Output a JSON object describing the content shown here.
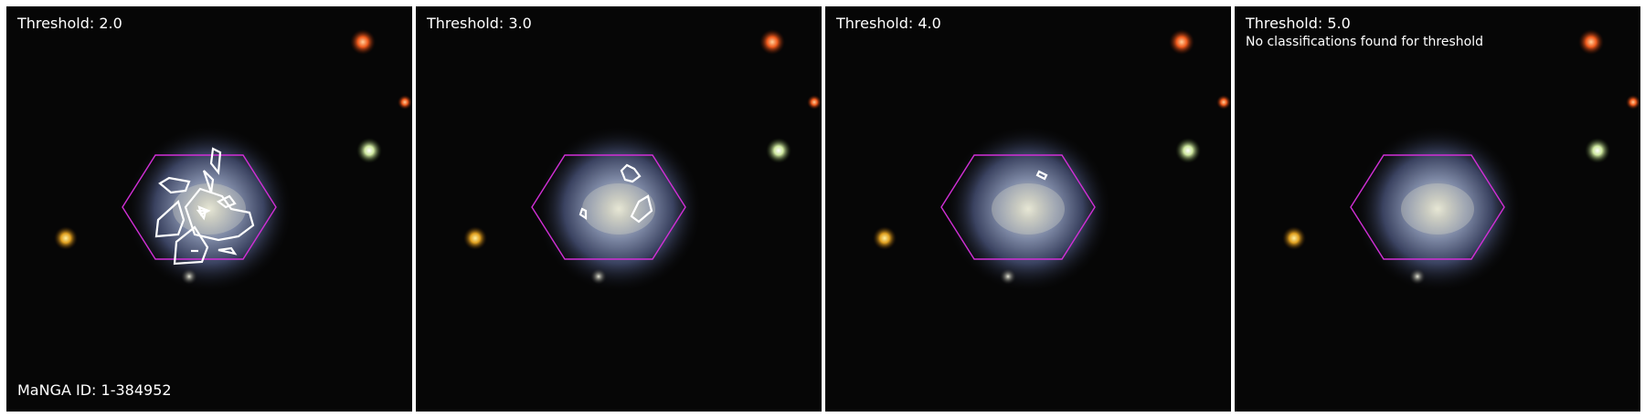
{
  "panels": [
    {
      "threshold_label": "Threshold: 2.0",
      "note": "",
      "contours": "many"
    },
    {
      "threshold_label": "Threshold: 3.0",
      "note": "",
      "contours": "few"
    },
    {
      "threshold_label": "Threshold: 4.0",
      "note": "",
      "contours": "single"
    },
    {
      "threshold_label": "Threshold: 5.0",
      "note": "No classifications found for threshold",
      "contours": "none"
    }
  ],
  "manga_id_label": "MaNGA ID: 1-384952",
  "colors": {
    "background": "#060606",
    "hexagon": "#d12fd6",
    "contour": "#ffffff",
    "separator": "#ffffff"
  },
  "icons": [
    "galaxy-image",
    "ifu-hexagon-outline",
    "contour-outline"
  ]
}
